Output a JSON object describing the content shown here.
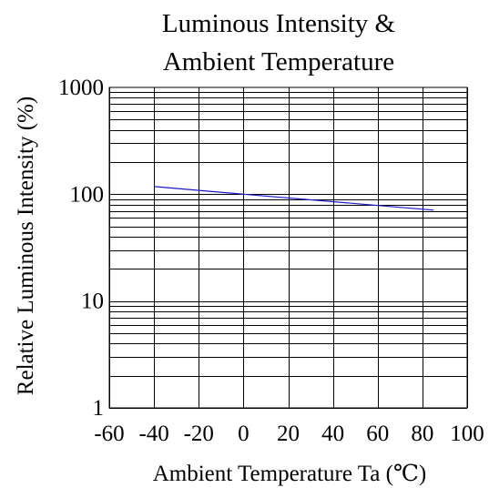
{
  "chart_data": {
    "type": "line",
    "title_lines": [
      "Luminous Intensity &",
      "Ambient Temperature"
    ],
    "xlabel": "Ambient Temperature Ta (℃)",
    "ylabel": "Relative Luminous Intensity (%)",
    "x_scale": "linear",
    "y_scale": "log",
    "xlim": [
      -60,
      100
    ],
    "ylim": [
      1,
      1000
    ],
    "x_ticks": [
      -60,
      -40,
      -20,
      0,
      20,
      40,
      60,
      80,
      100
    ],
    "x_tick_labels": [
      "-60",
      "-40",
      "-20",
      "0",
      "20",
      "40",
      "60",
      "80",
      "100"
    ],
    "y_ticks": [
      1,
      10,
      100,
      1000
    ],
    "y_tick_labels": [
      "1",
      "10",
      "100",
      "1000"
    ],
    "grid": true,
    "series": [
      {
        "color": "#1a1acc",
        "x": [
          -40,
          0,
          85
        ],
        "y": [
          118,
          100,
          71
        ]
      }
    ]
  }
}
